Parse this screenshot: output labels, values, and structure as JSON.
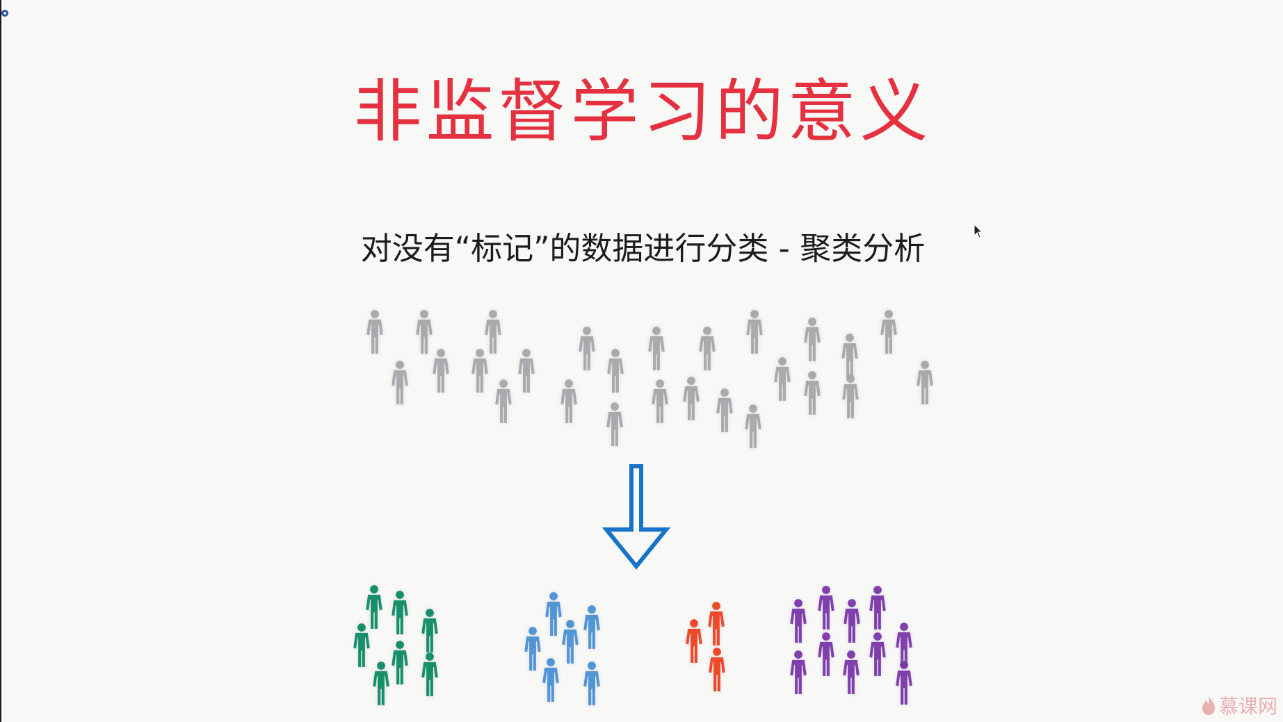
{
  "slide": {
    "title": "非监督学习的意义",
    "subtitle": "对没有“标记”的数据进行分类 - 聚类分析"
  },
  "colors": {
    "title": "#e5303f",
    "unlabeled": "#a4a6a8",
    "arrow": "#1773c7",
    "cluster_green": "#0b8a63",
    "cluster_blue": "#4a90d6",
    "cluster_red": "#f0401e",
    "cluster_purple": "#7a36a8"
  },
  "icons": {
    "figure": "person-icon",
    "arrow": "down-arrow-icon",
    "watermark": "flame-icon",
    "cursor": "mouse-cursor-icon"
  },
  "watermark": {
    "text": "慕课网"
  }
}
